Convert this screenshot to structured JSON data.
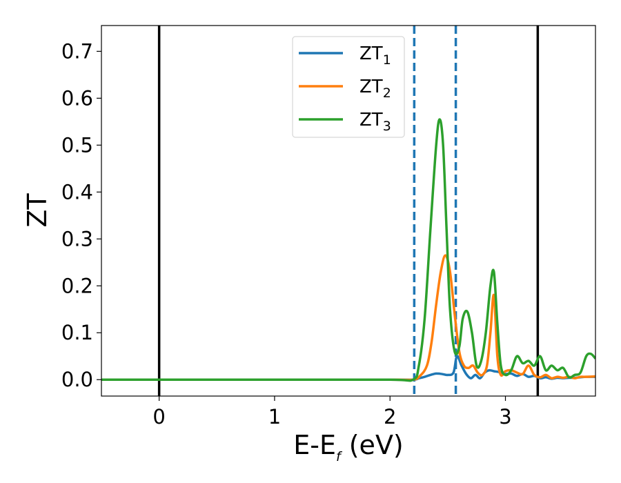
{
  "chart_data": {
    "type": "line",
    "xlabel": {
      "main": "E-E",
      "sub": "f",
      "tail": " (eV)"
    },
    "ylabel": "ZT",
    "xlim": [
      -0.5,
      3.78
    ],
    "ylim": [
      -0.035,
      0.755
    ],
    "xticks": [
      0,
      1,
      2,
      3
    ],
    "yticks": [
      0.0,
      0.1,
      0.2,
      0.3,
      0.4,
      0.5,
      0.6,
      0.7
    ],
    "grid": false,
    "legend_position": "top-center",
    "vertical_lines": [
      {
        "x": 0.0,
        "style": "solid",
        "color": "#000000"
      },
      {
        "x": 3.28,
        "style": "solid",
        "color": "#000000"
      },
      {
        "x": 2.21,
        "style": "dashed",
        "color": "#1f77b4"
      },
      {
        "x": 2.57,
        "style": "dashed",
        "color": "#1f77b4"
      }
    ],
    "series": [
      {
        "name": {
          "main": "ZT",
          "sub": "1"
        },
        "color": "#1f77b4",
        "x": [
          -0.5,
          0.0,
          1.0,
          2.0,
          2.2,
          2.25,
          2.3,
          2.35,
          2.4,
          2.45,
          2.5,
          2.55,
          2.58,
          2.62,
          2.66,
          2.7,
          2.74,
          2.78,
          2.82,
          2.86,
          2.9,
          2.95,
          3.0,
          3.05,
          3.1,
          3.15,
          3.2,
          3.25,
          3.3,
          3.35,
          3.4,
          3.45,
          3.5,
          3.55,
          3.6,
          3.65,
          3.7,
          3.78
        ],
        "y": [
          0,
          0,
          0,
          0,
          0,
          0.003,
          0.006,
          0.01,
          0.013,
          0.012,
          0.01,
          0.015,
          0.05,
          0.03,
          0.012,
          0.003,
          0.01,
          0.003,
          0.015,
          0.02,
          0.018,
          0.016,
          0.012,
          0.013,
          0.008,
          0.012,
          0.006,
          0.008,
          0.003,
          0.005,
          0.002,
          0.004,
          0.003,
          0.004,
          0.004,
          0.005,
          0.006,
          0.006
        ]
      },
      {
        "name": {
          "main": "ZT",
          "sub": "2"
        },
        "color": "#ff7f0e",
        "x": [
          -0.5,
          0.0,
          1.0,
          2.0,
          2.2,
          2.26,
          2.32,
          2.36,
          2.4,
          2.44,
          2.48,
          2.52,
          2.56,
          2.6,
          2.64,
          2.68,
          2.72,
          2.76,
          2.8,
          2.84,
          2.87,
          2.9,
          2.93,
          2.96,
          3.0,
          3.05,
          3.1,
          3.15,
          3.2,
          3.25,
          3.3,
          3.35,
          3.4,
          3.45,
          3.5,
          3.55,
          3.6,
          3.65,
          3.7,
          3.78
        ],
        "y": [
          0,
          0,
          0,
          0,
          0,
          0.008,
          0.03,
          0.08,
          0.16,
          0.23,
          0.265,
          0.23,
          0.14,
          0.06,
          0.03,
          0.025,
          0.03,
          0.015,
          0.01,
          0.03,
          0.1,
          0.18,
          0.05,
          0.01,
          0.018,
          0.02,
          0.015,
          0.012,
          0.03,
          0.01,
          0.005,
          0.01,
          0.003,
          0.006,
          0.004,
          0.006,
          0.003,
          0.006,
          0.006,
          0.007
        ]
      },
      {
        "name": {
          "main": "ZT",
          "sub": "3"
        },
        "color": "#2ca02c",
        "x": [
          -0.5,
          0.0,
          1.0,
          2.0,
          2.2,
          2.25,
          2.3,
          2.35,
          2.4,
          2.43,
          2.46,
          2.49,
          2.52,
          2.56,
          2.6,
          2.63,
          2.67,
          2.71,
          2.75,
          2.79,
          2.83,
          2.87,
          2.9,
          2.93,
          2.96,
          3.0,
          3.05,
          3.1,
          3.15,
          3.2,
          3.25,
          3.3,
          3.35,
          3.4,
          3.45,
          3.5,
          3.55,
          3.6,
          3.65,
          3.7,
          3.74,
          3.78
        ],
        "y": [
          0,
          0,
          0,
          0,
          0,
          0.03,
          0.13,
          0.32,
          0.5,
          0.555,
          0.5,
          0.32,
          0.15,
          0.06,
          0.07,
          0.13,
          0.145,
          0.1,
          0.03,
          0.04,
          0.1,
          0.2,
          0.23,
          0.12,
          0.03,
          0.01,
          0.02,
          0.05,
          0.035,
          0.04,
          0.03,
          0.05,
          0.02,
          0.03,
          0.02,
          0.025,
          0.005,
          0.01,
          0.015,
          0.05,
          0.055,
          0.045
        ]
      }
    ]
  }
}
